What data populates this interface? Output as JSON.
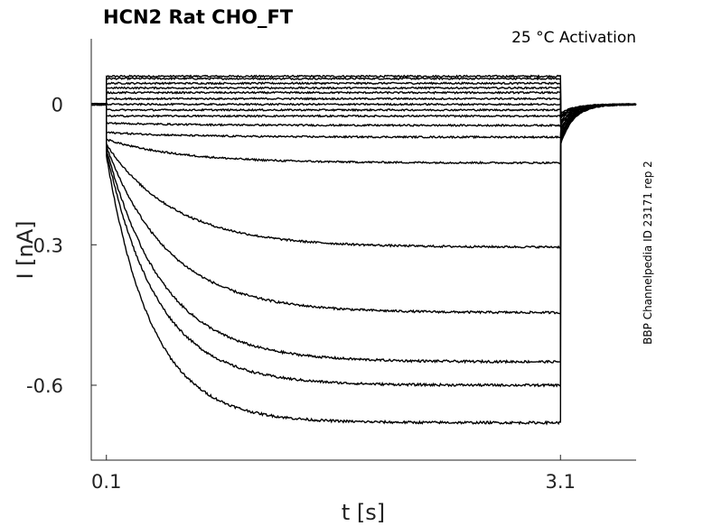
{
  "chart_data": {
    "type": "line",
    "title": "HCN2  Rat  CHO_FT",
    "condition": "25 °C  Activation",
    "side_label": "BBP Channelpedia ID 23171 rep 2",
    "xlabel": "t [s]",
    "ylabel": "I [nA]",
    "xlim": [
      0.0,
      3.6
    ],
    "ylim": [
      -0.76,
      0.14
    ],
    "x_ticks": [
      {
        "value": 0.1,
        "label": "0.1"
      },
      {
        "value": 3.1,
        "label": "3.1"
      }
    ],
    "y_ticks": [
      {
        "value": 0,
        "label": "0"
      },
      {
        "value": -0.3,
        "label": "-0.3"
      },
      {
        "value": -0.6,
        "label": "-0.6"
      }
    ],
    "step_start_s": 0.1,
    "step_end_s": 3.1,
    "holding_current_nA": 0.0,
    "series": [
      {
        "initial": 0.06,
        "final": 0.06,
        "tail": -0.02
      },
      {
        "initial": 0.055,
        "final": 0.055,
        "tail": -0.02
      },
      {
        "initial": 0.045,
        "final": 0.045,
        "tail": -0.025
      },
      {
        "initial": 0.035,
        "final": 0.035,
        "tail": -0.025
      },
      {
        "initial": 0.025,
        "final": 0.025,
        "tail": -0.03
      },
      {
        "initial": 0.012,
        "final": 0.012,
        "tail": -0.03
      },
      {
        "initial": 0.0,
        "final": 0.0,
        "tail": -0.035
      },
      {
        "initial": -0.012,
        "final": -0.012,
        "tail": -0.04
      },
      {
        "initial": -0.025,
        "final": -0.025,
        "tail": -0.045
      },
      {
        "initial": -0.04,
        "final": -0.045,
        "tail": -0.05
      },
      {
        "initial": -0.06,
        "final": -0.07,
        "tail": -0.055
      },
      {
        "initial": -0.075,
        "final": -0.125,
        "tail": -0.06
      },
      {
        "initial": -0.085,
        "final": -0.305,
        "tail": -0.065
      },
      {
        "initial": -0.09,
        "final": -0.445,
        "tail": -0.07
      },
      {
        "initial": -0.095,
        "final": -0.55,
        "tail": -0.075
      },
      {
        "initial": -0.1,
        "final": -0.6,
        "tail": -0.08
      },
      {
        "initial": -0.11,
        "final": -0.68,
        "tail": -0.085
      }
    ]
  }
}
